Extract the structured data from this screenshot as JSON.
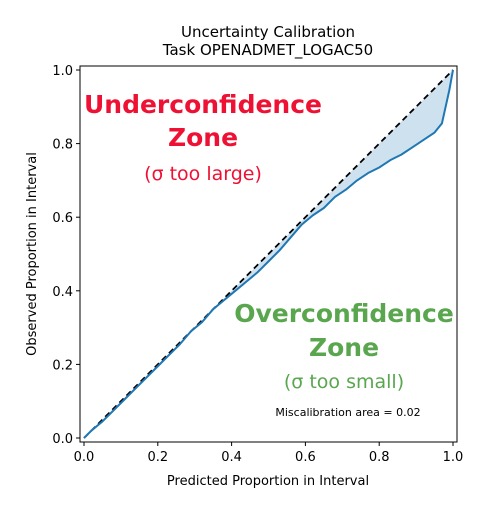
{
  "chart_data": {
    "type": "line",
    "title": "Uncertainty Calibration",
    "subtitle": "Task OPENADMET_LOGAC50",
    "xlabel": "Predicted Proportion in Interval",
    "ylabel": "Observed Proportion in Interval",
    "xlim": [
      0.0,
      1.0
    ],
    "ylim": [
      0.0,
      1.0
    ],
    "xticks": [
      "0.0",
      "0.2",
      "0.4",
      "0.6",
      "0.8",
      "1.0"
    ],
    "yticks": [
      "0.0",
      "0.2",
      "0.4",
      "0.6",
      "0.8",
      "1.0"
    ],
    "grid": false,
    "series": [
      {
        "color": "#1f77b4",
        "x": [
          0.0,
          0.02,
          0.05,
          0.08,
          0.11,
          0.14,
          0.17,
          0.2,
          0.23,
          0.26,
          0.29,
          0.32,
          0.35,
          0.38,
          0.41,
          0.44,
          0.47,
          0.5,
          0.53,
          0.56,
          0.59,
          0.62,
          0.65,
          0.68,
          0.71,
          0.74,
          0.77,
          0.8,
          0.83,
          0.86,
          0.89,
          0.92,
          0.95,
          0.97,
          0.98,
          0.99,
          1.0
        ],
        "y": [
          0.0,
          0.02,
          0.045,
          0.075,
          0.105,
          0.135,
          0.165,
          0.195,
          0.225,
          0.255,
          0.29,
          0.315,
          0.35,
          0.375,
          0.4,
          0.425,
          0.45,
          0.48,
          0.51,
          0.545,
          0.58,
          0.605,
          0.625,
          0.655,
          0.675,
          0.7,
          0.72,
          0.735,
          0.755,
          0.77,
          0.79,
          0.81,
          0.83,
          0.855,
          0.9,
          0.945,
          1.0
        ]
      }
    ],
    "reference_line": {
      "x": [
        0.0,
        1.0
      ],
      "y": [
        0.0,
        1.0
      ],
      "style": "dashed",
      "color": "#000000"
    },
    "fill_color": "#1f77b4",
    "annotations": {
      "underconfidence_title": "Underconfidence",
      "underconfidence_zone": "Zone",
      "underconfidence_sub": "(σ too large)",
      "overconfidence_title": "Overconfidence",
      "overconfidence_zone": "Zone",
      "overconfidence_sub": "(σ too small)",
      "miscalibration": "Miscalibration area = 0.02"
    },
    "colors": {
      "under": "#ee1133",
      "over": "#5aa64f"
    }
  }
}
